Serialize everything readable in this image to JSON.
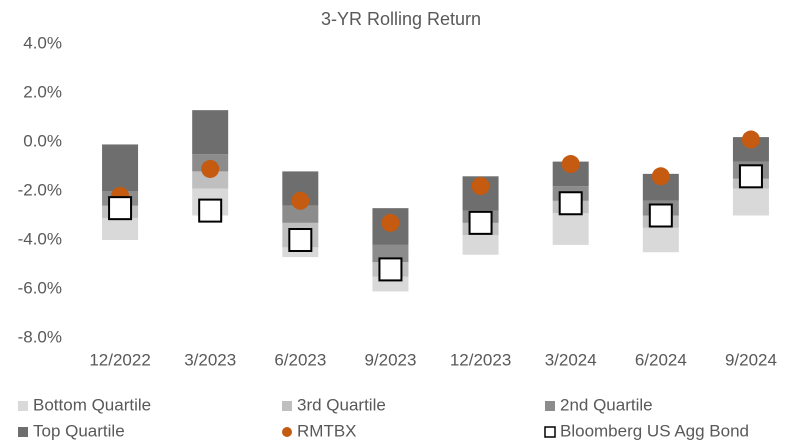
{
  "chart_data": {
    "type": "bar",
    "title": "3-YR Rolling Return",
    "categories": [
      "12/2022",
      "3/2023",
      "6/2023",
      "9/2023",
      "12/2023",
      "3/2024",
      "6/2024",
      "9/2024"
    ],
    "ylim": [
      -8,
      4
    ],
    "yticks": [
      {
        "value": -8,
        "label": "-8.0%"
      },
      {
        "value": -6,
        "label": "-6.0%"
      },
      {
        "value": -4,
        "label": "-4.0%"
      },
      {
        "value": -2,
        "label": "-2.0%"
      },
      {
        "value": 0,
        "label": "0.0%"
      },
      {
        "value": 2,
        "label": "2.0%"
      },
      {
        "value": 4,
        "label": "4.0%"
      }
    ],
    "series": [
      {
        "name": "Bottom Quartile",
        "color": "#d9d9d9",
        "values": [
          [
            -4.0,
            -3.1
          ],
          [
            -3.0,
            -1.9
          ],
          [
            -4.7,
            -4.3
          ],
          [
            -6.1,
            -5.5
          ],
          [
            -4.6,
            -3.8
          ],
          [
            -4.2,
            -2.9
          ],
          [
            -4.5,
            -3.5
          ],
          [
            -3.0,
            -1.9
          ]
        ]
      },
      {
        "name": "3rd Quartile",
        "color": "#bfbfbf",
        "values": [
          [
            -3.1,
            -2.6
          ],
          [
            -1.9,
            -1.2
          ],
          [
            -4.3,
            -3.3
          ],
          [
            -5.5,
            -4.9
          ],
          [
            -3.8,
            -3.3
          ],
          [
            -2.9,
            -2.4
          ],
          [
            -3.5,
            -3.0
          ],
          [
            -1.9,
            -1.5
          ]
        ]
      },
      {
        "name": "2nd Quartile",
        "color": "#8c8c8c",
        "values": [
          [
            -2.6,
            -2.0
          ],
          [
            -1.2,
            -0.5
          ],
          [
            -3.3,
            -2.6
          ],
          [
            -4.9,
            -4.2
          ],
          [
            -3.3,
            -2.8
          ],
          [
            -2.4,
            -1.8
          ],
          [
            -3.0,
            -2.4
          ],
          [
            -1.5,
            -0.8
          ]
        ]
      },
      {
        "name": "Top Quartile",
        "color": "#6e6e6e",
        "values": [
          [
            -2.0,
            -0.1
          ],
          [
            -0.5,
            1.3
          ],
          [
            -2.6,
            -1.2
          ],
          [
            -4.2,
            -2.7
          ],
          [
            -2.8,
            -1.4
          ],
          [
            -1.8,
            -0.8
          ],
          [
            -2.4,
            -1.3
          ],
          [
            -0.8,
            0.2
          ]
        ]
      },
      {
        "name": "RMTBX",
        "color": "#c55a11",
        "marker": "circle",
        "values": [
          -2.2,
          -1.1,
          -2.4,
          -3.3,
          -1.8,
          -0.9,
          -1.4,
          0.1
        ]
      },
      {
        "name": "Bloomberg US Agg Bond",
        "color": "#000000",
        "marker": "square",
        "values": [
          -2.7,
          -2.8,
          -4.0,
          -5.2,
          -3.3,
          -2.5,
          -3.0,
          -1.4
        ]
      }
    ]
  }
}
